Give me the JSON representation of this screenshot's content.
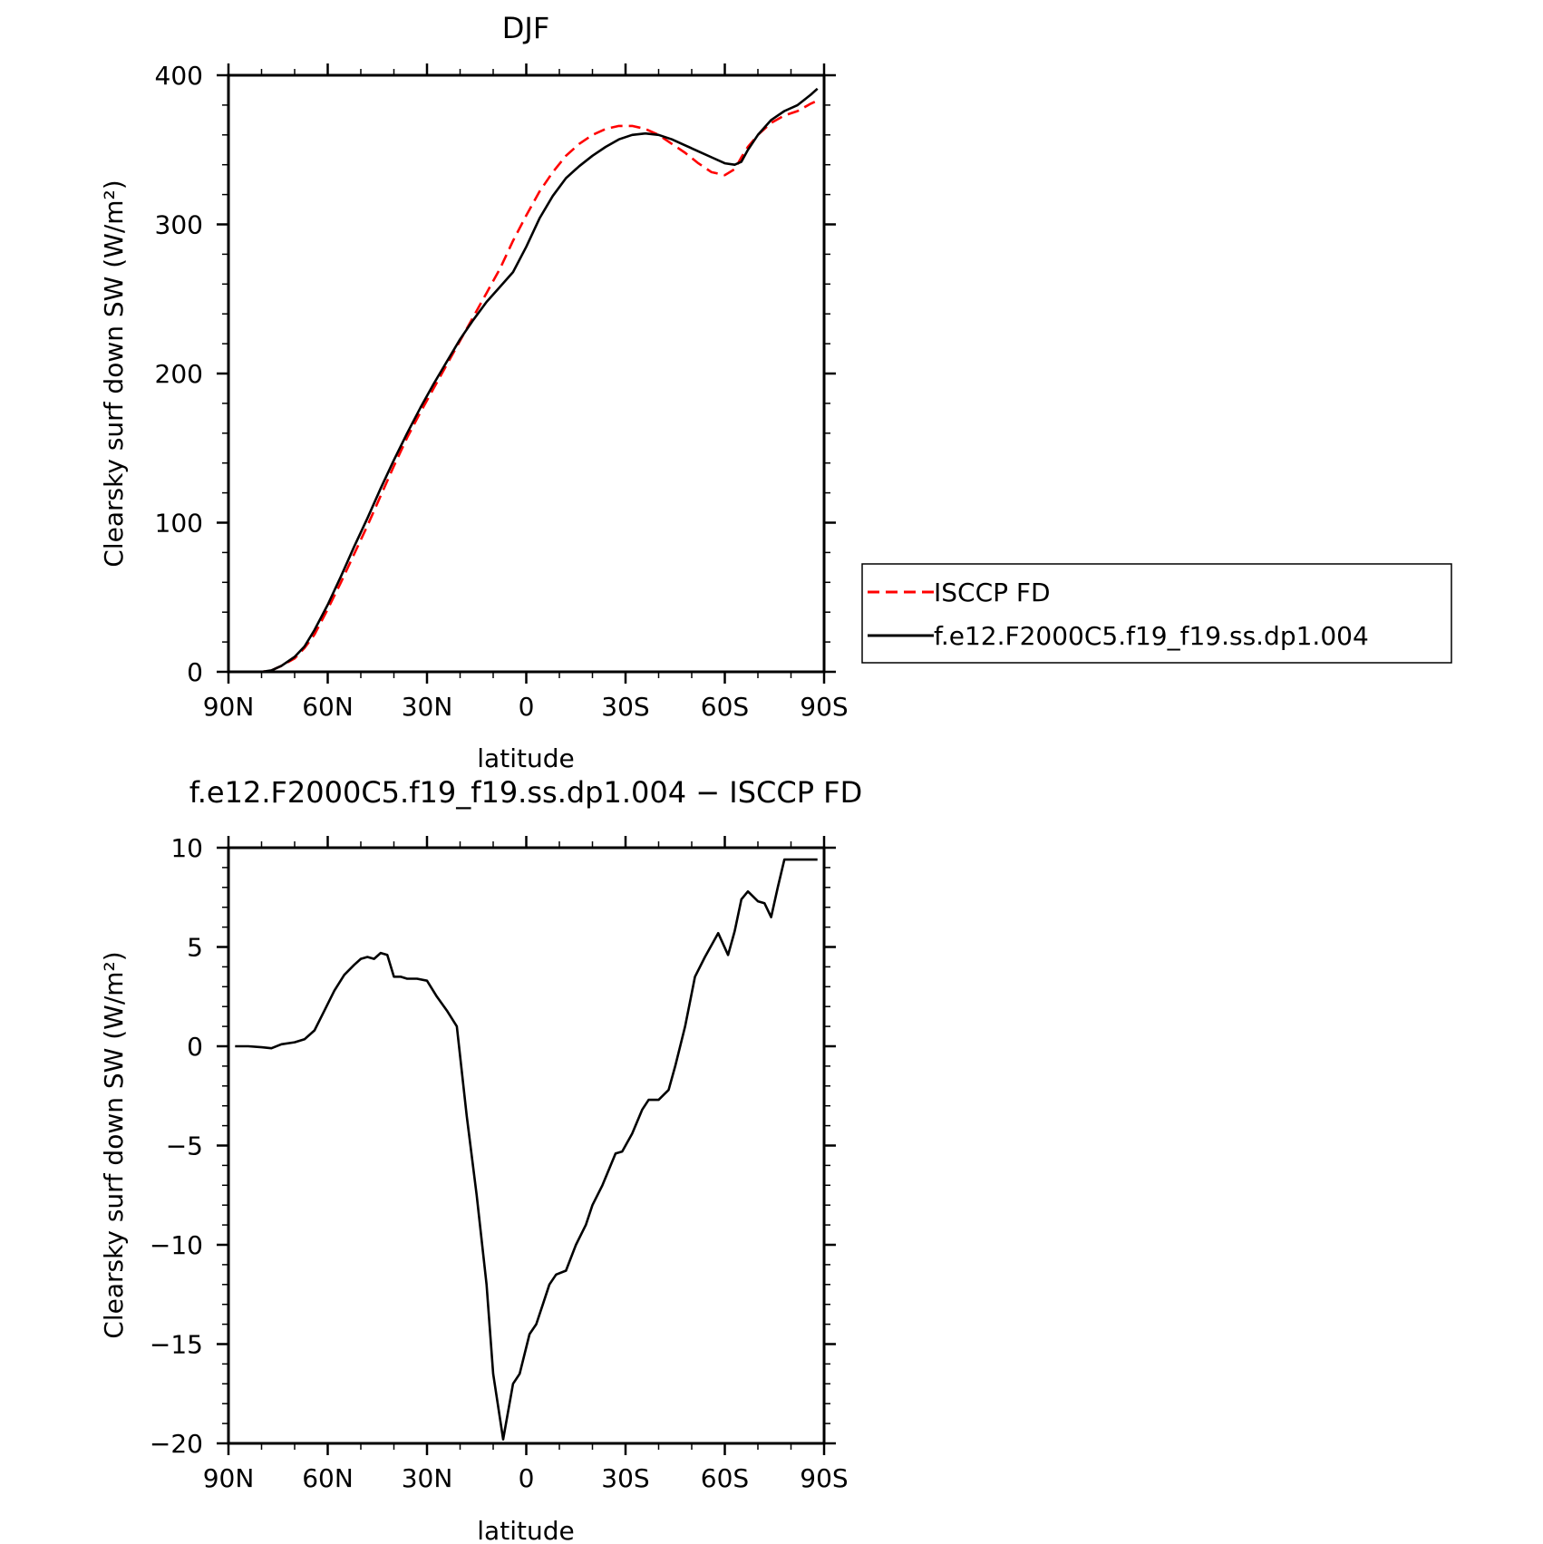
{
  "chart_data": [
    {
      "type": "line",
      "title": "DJF",
      "xlabel": "latitude",
      "ylabel": "Clearsky surf down SW (W/m²)",
      "x_ticks": [
        "90N",
        "60N",
        "30N",
        "0",
        "30S",
        "60S",
        "90S"
      ],
      "x_tick_values": [
        -90,
        -60,
        -30,
        0,
        30,
        60,
        90
      ],
      "xlim": [
        -90,
        90
      ],
      "y_ticks": [
        "0",
        "100",
        "200",
        "300",
        "400"
      ],
      "y_tick_values": [
        0,
        100,
        200,
        300,
        400
      ],
      "ylim": [
        0,
        400
      ],
      "grid": false,
      "legend_position": "right",
      "series": [
        {
          "name": "ISCCP FD",
          "color": "#ff0000",
          "style": "dashed",
          "x": [
            -88,
            -85,
            -80,
            -77,
            -74,
            -70,
            -67,
            -64,
            -60,
            -56,
            -52,
            -48,
            -44,
            -40,
            -36,
            -32,
            -28,
            -24,
            -20,
            -16,
            -12,
            -8,
            -4,
            0,
            4,
            8,
            12,
            16,
            20,
            24,
            28,
            32,
            36,
            40,
            44,
            48,
            52,
            56,
            60,
            63,
            65,
            67,
            70,
            74,
            78,
            82,
            86,
            88
          ],
          "values": [
            0,
            0,
            0,
            1,
            4,
            9,
            16,
            25,
            42,
            60,
            79,
            98,
            118,
            138,
            157,
            174,
            190,
            206,
            222,
            238,
            254,
            270,
            289,
            306,
            322,
            335,
            346,
            354,
            360,
            364,
            366,
            366,
            364,
            360,
            354,
            348,
            341,
            335,
            333,
            337,
            345,
            352,
            360,
            368,
            373,
            376,
            381,
            383
          ]
        },
        {
          "name": "f.e12.F2000C5.f19_f19.ss.dp1.004",
          "color": "#000000",
          "style": "solid",
          "x": [
            -88,
            -85,
            -80,
            -77,
            -74,
            -70,
            -67,
            -64,
            -60,
            -56,
            -52,
            -48,
            -44,
            -40,
            -36,
            -32,
            -28,
            -24,
            -20,
            -16,
            -12,
            -8,
            -4,
            0,
            4,
            8,
            12,
            16,
            20,
            24,
            28,
            32,
            36,
            40,
            44,
            48,
            52,
            56,
            60,
            63,
            65,
            67,
            70,
            74,
            78,
            82,
            86,
            88
          ],
          "values": [
            0,
            0,
            0,
            1,
            4,
            10,
            17,
            28,
            45,
            64,
            84,
            103,
            123,
            142,
            160,
            177,
            193,
            208,
            223,
            236,
            248,
            258,
            268,
            285,
            304,
            319,
            331,
            339,
            346,
            352,
            357,
            360,
            361,
            360,
            357,
            353,
            349,
            345,
            341,
            340,
            342,
            350,
            360,
            370,
            376,
            380,
            387,
            391
          ]
        }
      ]
    },
    {
      "type": "line",
      "title": "f.e12.F2000C5.f19_f19.ss.dp1.004 − ISCCP FD",
      "xlabel": "latitude",
      "ylabel": "Clearsky surf down SW (W/m²)",
      "x_ticks": [
        "90N",
        "60N",
        "30N",
        "0",
        "30S",
        "60S",
        "90S"
      ],
      "x_tick_values": [
        -90,
        -60,
        -30,
        0,
        30,
        60,
        90
      ],
      "xlim": [
        -90,
        90
      ],
      "y_ticks": [
        "−20",
        "−15",
        "−10",
        "−5",
        "0",
        "5",
        "10"
      ],
      "y_tick_values": [
        -20,
        -15,
        -10,
        -5,
        0,
        5,
        10
      ],
      "ylim": [
        -20,
        10
      ],
      "grid": false,
      "series": [
        {
          "color": "#000000",
          "style": "solid",
          "x": [
            -88,
            -84,
            -80,
            -77,
            -74,
            -70,
            -67,
            -64,
            -61,
            -58,
            -55,
            -52,
            -50,
            -48,
            -46,
            -44,
            -42,
            -40,
            -38,
            -36,
            -33,
            -30,
            -27,
            -24,
            -21,
            -18,
            -15,
            -12,
            -10,
            -7,
            -4,
            -2,
            1,
            3,
            5,
            7,
            9,
            12,
            15,
            18,
            20,
            23,
            27,
            29,
            32,
            35,
            37,
            40,
            43,
            45,
            48,
            51,
            54,
            58,
            61,
            63,
            65,
            67,
            70,
            72,
            74,
            76,
            78,
            80,
            83,
            88
          ],
          "values": [
            0,
            0,
            -0.05,
            -0.1,
            0.1,
            0.2,
            0.35,
            0.8,
            1.8,
            2.8,
            3.6,
            4.1,
            4.4,
            4.5,
            4.4,
            4.7,
            4.6,
            3.5,
            3.5,
            3.4,
            3.4,
            3.3,
            2.5,
            1.8,
            1,
            -3.5,
            -7.5,
            -12,
            -16.5,
            -19.8,
            -17,
            -16.5,
            -14.5,
            -14,
            -13,
            -12,
            -11.5,
            -11.3,
            -10,
            -9,
            -8,
            -7,
            -5.4,
            -5.3,
            -4.4,
            -3.2,
            -2.7,
            -2.7,
            -2.2,
            -1,
            1,
            3.5,
            4.5,
            5.7,
            4.6,
            5.8,
            7.4,
            7.8,
            7.3,
            7.2,
            6.5,
            8,
            9.4,
            9.4,
            9.4,
            9.4
          ]
        }
      ]
    }
  ],
  "legend": {
    "entries": [
      {
        "label": "ISCCP FD",
        "color": "#ff0000",
        "style": "dashed"
      },
      {
        "label": "f.e12.F2000C5.f19_f19.ss.dp1.004",
        "color": "#000000",
        "style": "solid"
      }
    ]
  }
}
